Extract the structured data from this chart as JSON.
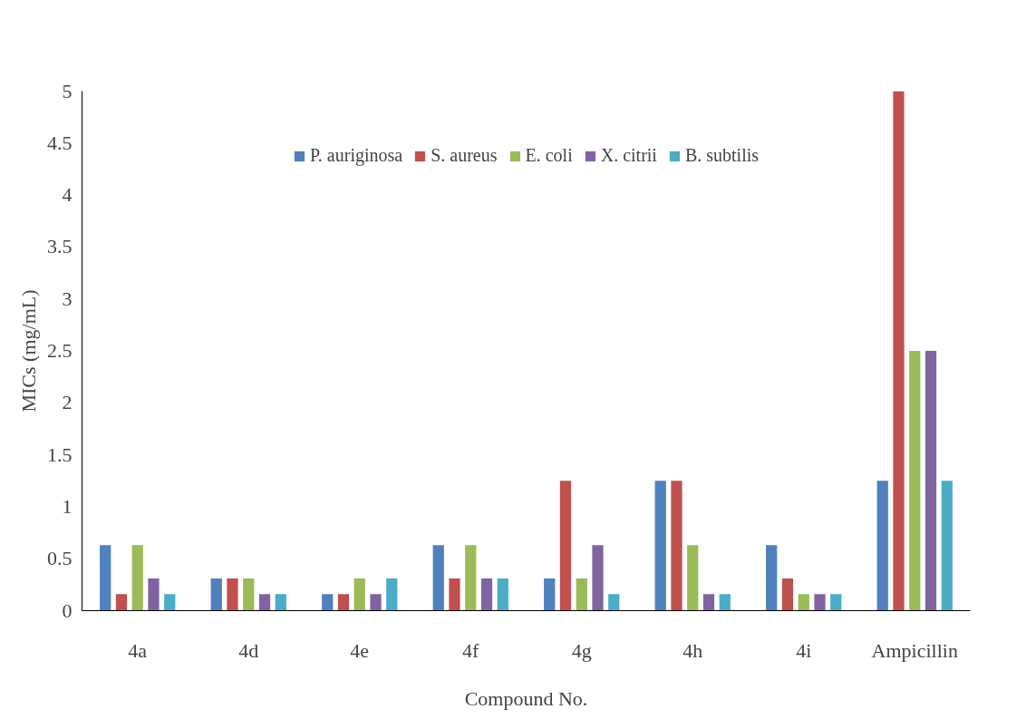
{
  "chart_data": {
    "type": "bar",
    "xlabel": "Compound No.",
    "ylabel": "MICs (mg/mL)",
    "categories": [
      "4a",
      "4d",
      "4e",
      "4f",
      "4g",
      "4h",
      "4i",
      "Ampicillin"
    ],
    "series": [
      {
        "name": "P. auriginosa",
        "color": "#4f81bd",
        "values": [
          0.63,
          0.31,
          0.16,
          0.63,
          0.31,
          1.25,
          0.63,
          1.25
        ]
      },
      {
        "name": "S. aureus",
        "color": "#c0504d",
        "values": [
          0.16,
          0.31,
          0.16,
          0.31,
          1.25,
          1.25,
          0.31,
          5
        ]
      },
      {
        "name": "E. coli",
        "color": "#9bbb59",
        "values": [
          0.63,
          0.31,
          0.31,
          0.63,
          0.31,
          0.63,
          0.16,
          2.5
        ]
      },
      {
        "name": "X. citrii",
        "color": "#8064a2",
        "values": [
          0.31,
          0.16,
          0.16,
          0.31,
          0.63,
          0.16,
          0.16,
          2.5
        ]
      },
      {
        "name": "B. subtilis",
        "color": "#4bacc6",
        "values": [
          0.16,
          0.16,
          0.31,
          0.31,
          0.16,
          0.16,
          0.16,
          1.25
        ]
      }
    ],
    "ylim": [
      0,
      5
    ],
    "yticks": [
      0,
      0.5,
      1,
      1.5,
      2,
      2.5,
      3,
      3.5,
      4,
      4.5,
      5
    ],
    "grid": false,
    "legend": "top"
  }
}
